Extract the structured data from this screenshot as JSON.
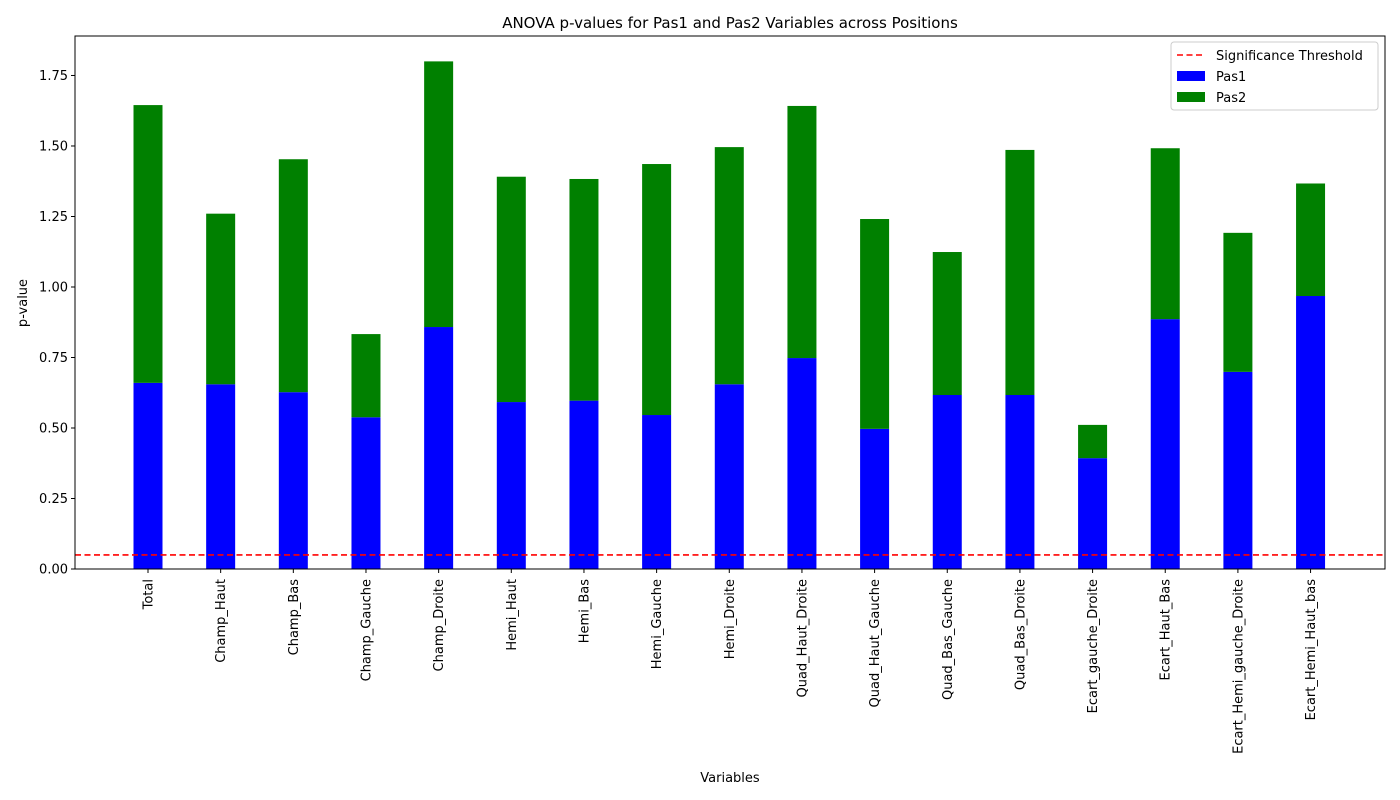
{
  "chart_data": {
    "type": "bar",
    "stacked": true,
    "title": "ANOVA p-values for Pas1 and Pas2 Variables across Positions",
    "xlabel": "Variables",
    "ylabel": "p-value",
    "categories": [
      "Total",
      "Champ_Haut",
      "Champ_Bas",
      "Champ_Gauche",
      "Champ_Droite",
      "Hemi_Haut",
      "Hemi_Bas",
      "Hemi_Gauche",
      "Hemi_Droite",
      "Quad_Haut_Droite",
      "Quad_Haut_Gauche",
      "Quad_Bas_Gauche",
      "Quad_Bas_Droite",
      "Ecart_gauche_Droite",
      "Ecart_Haut_Bas",
      "Ecart_Hemi_gauche_Droite",
      "Ecart_Hemi_Haut_bas"
    ],
    "series": [
      {
        "name": "Pas1",
        "color": "#0000ff",
        "values": [
          0.66,
          0.655,
          0.627,
          0.538,
          0.858,
          0.592,
          0.597,
          0.546,
          0.655,
          0.748,
          0.497,
          0.617,
          0.617,
          0.393,
          0.886,
          0.699,
          0.968
        ]
      },
      {
        "name": "Pas2",
        "color": "#008000",
        "values": [
          0.985,
          0.605,
          0.826,
          0.295,
          0.942,
          0.799,
          0.786,
          0.89,
          0.841,
          0.894,
          0.744,
          0.507,
          0.869,
          0.118,
          0.606,
          0.493,
          0.399
        ]
      }
    ],
    "threshold": {
      "name": "Significance Threshold",
      "value": 0.05,
      "color": "#ff0000",
      "style": "dashed"
    },
    "ylim": [
      0,
      1.89
    ],
    "yticks": [
      0.0,
      0.25,
      0.5,
      0.75,
      1.0,
      1.25,
      1.5,
      1.75
    ],
    "ytick_labels": [
      "0.00",
      "0.25",
      "0.50",
      "0.75",
      "1.00",
      "1.25",
      "1.50",
      "1.75"
    ],
    "grid": false,
    "legend_position": "top-right",
    "legend": [
      "Significance Threshold",
      "Pas1",
      "Pas2"
    ]
  }
}
